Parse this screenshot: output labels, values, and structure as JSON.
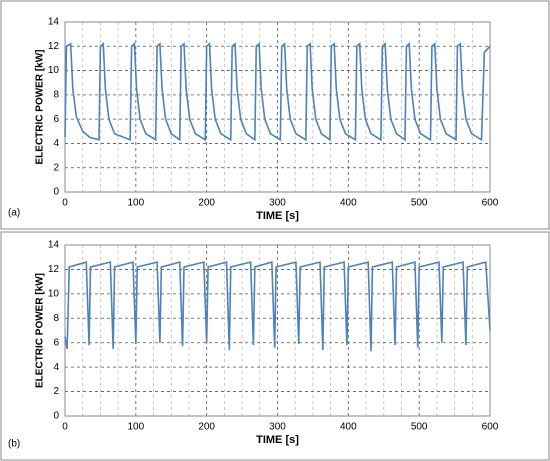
{
  "chart_data": [
    {
      "type": "line",
      "panel_label": "(a)",
      "x_label": "TIME [s]",
      "y_label": "ELECTRIC POWER [kW]",
      "xlim": [
        0,
        600
      ],
      "ylim": [
        0,
        14
      ],
      "xticks": [
        0,
        100,
        200,
        300,
        400,
        500,
        600
      ],
      "yticks": [
        0,
        2,
        4,
        6,
        8,
        10,
        12,
        14
      ],
      "xminorticks": [
        25,
        50,
        75,
        125,
        150,
        175,
        225,
        250,
        275,
        325,
        350,
        375,
        425,
        450,
        475,
        525,
        550,
        575
      ],
      "grid": true,
      "series": [
        {
          "color": "#4f81bd",
          "x": [
            0,
            2,
            8,
            11,
            16,
            25,
            35,
            48,
            50,
            54,
            57,
            62,
            70,
            92,
            94,
            98,
            101,
            106,
            114,
            128,
            130,
            134,
            137,
            142,
            150,
            162,
            164,
            168,
            171,
            176,
            184,
            198,
            200,
            204,
            207,
            212,
            220,
            234,
            236,
            240,
            243,
            248,
            256,
            268,
            270,
            274,
            277,
            282,
            290,
            304,
            306,
            310,
            313,
            318,
            326,
            340,
            342,
            346,
            349,
            354,
            362,
            374,
            376,
            380,
            383,
            388,
            396,
            410,
            412,
            416,
            419,
            424,
            432,
            446,
            448,
            452,
            455,
            460,
            468,
            480,
            482,
            486,
            489,
            494,
            502,
            516,
            518,
            522,
            525,
            530,
            538,
            552,
            554,
            558,
            561,
            566,
            574,
            588,
            592,
            600
          ],
          "values": [
            4.5,
            12.0,
            12.2,
            8.5,
            6.2,
            5.0,
            4.5,
            4.3,
            12.0,
            12.2,
            8.5,
            6.0,
            4.8,
            4.3,
            12.0,
            12.2,
            8.5,
            6.0,
            4.8,
            4.3,
            12.0,
            12.2,
            8.5,
            6.0,
            4.8,
            4.3,
            12.0,
            12.2,
            8.5,
            6.0,
            4.8,
            4.3,
            12.0,
            12.2,
            8.5,
            6.0,
            4.8,
            4.3,
            12.0,
            12.2,
            8.5,
            6.0,
            4.8,
            4.3,
            12.0,
            12.2,
            8.5,
            6.0,
            4.8,
            4.3,
            12.0,
            12.2,
            8.5,
            6.0,
            4.8,
            4.3,
            12.0,
            12.2,
            8.5,
            6.0,
            4.8,
            4.3,
            12.0,
            12.2,
            8.5,
            6.0,
            4.8,
            4.3,
            12.0,
            12.2,
            8.5,
            6.0,
            4.8,
            4.3,
            12.0,
            12.2,
            8.5,
            6.0,
            4.8,
            4.3,
            12.0,
            12.2,
            8.5,
            6.0,
            4.8,
            4.3,
            12.0,
            12.2,
            8.5,
            6.0,
            4.8,
            4.3,
            12.0,
            12.2,
            8.5,
            6.0,
            4.8,
            4.3,
            11.5,
            12.0
          ]
        }
      ]
    },
    {
      "type": "line",
      "panel_label": "(b)",
      "x_label": "TIME [s]",
      "y_label": "ELECTRIC POWER [kW]",
      "xlim": [
        0,
        600
      ],
      "ylim": [
        0,
        14
      ],
      "xticks": [
        0,
        100,
        200,
        300,
        400,
        500,
        600
      ],
      "yticks": [
        0,
        2,
        4,
        6,
        8,
        10,
        12,
        14
      ],
      "xminorticks": [
        25,
        50,
        75,
        125,
        150,
        175,
        225,
        250,
        275,
        325,
        350,
        375,
        425,
        450,
        475,
        525,
        550,
        575
      ],
      "grid": true,
      "series": [
        {
          "color": "#4f81bd",
          "x": [
            0,
            3,
            6,
            30,
            34,
            36,
            64,
            68,
            70,
            96,
            100,
            102,
            130,
            134,
            136,
            162,
            166,
            168,
            196,
            200,
            202,
            228,
            232,
            234,
            262,
            266,
            268,
            292,
            296,
            298,
            326,
            330,
            332,
            360,
            364,
            366,
            394,
            398,
            400,
            428,
            432,
            434,
            462,
            466,
            468,
            494,
            498,
            500,
            528,
            532,
            534,
            562,
            566,
            568,
            594,
            600
          ],
          "values": [
            6.5,
            5.5,
            12.2,
            12.6,
            5.8,
            12.2,
            12.6,
            5.5,
            12.2,
            12.6,
            5.9,
            12.2,
            12.6,
            6.0,
            12.2,
            12.6,
            5.7,
            12.2,
            12.6,
            6.0,
            12.2,
            12.6,
            5.4,
            12.2,
            12.6,
            5.8,
            12.2,
            12.6,
            5.6,
            12.2,
            12.6,
            5.9,
            12.2,
            12.6,
            5.4,
            12.2,
            12.6,
            5.8,
            12.2,
            12.6,
            5.3,
            12.2,
            12.6,
            5.8,
            12.2,
            12.6,
            5.6,
            12.2,
            12.6,
            6.0,
            12.2,
            12.6,
            5.8,
            12.2,
            12.6,
            7.0
          ]
        }
      ]
    }
  ]
}
